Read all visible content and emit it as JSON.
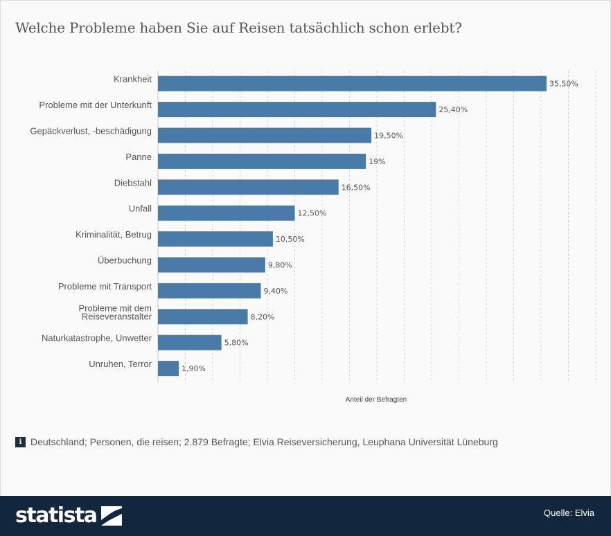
{
  "page": {
    "title": "Welche Probleme haben Sie auf Reisen tatsächlich schon erlebt?",
    "note": "Deutschland; Personen, die reisen; 2.879 Befragte; Elvia Reiseversicherung, Leuphana Universität Lüneburg",
    "info_icon_glyph": "i",
    "brand": "statista",
    "source": "Quelle: Elvia"
  },
  "chart_data": {
    "type": "bar",
    "orientation": "horizontal",
    "xlabel": "Anteil der Befragten",
    "xlim": [
      0,
      40
    ],
    "grid": "vertical-dashed",
    "bar_color": "#4a7aa8",
    "categories": [
      [
        "Krankheit"
      ],
      [
        "Probleme mit der Unterkunft"
      ],
      [
        "Gepäckverlust, -beschädigung"
      ],
      [
        "Panne"
      ],
      [
        "Diebstahl"
      ],
      [
        "Unfall"
      ],
      [
        "Kriminalität, Betrug"
      ],
      [
        "Überbuchung"
      ],
      [
        "Probleme mit Transport"
      ],
      [
        "Probleme mit dem",
        "Reiseveranstalter"
      ],
      [
        "Naturkatastrophe, Unwetter"
      ],
      [
        "Unruhen, Terror"
      ]
    ],
    "values": [
      35.5,
      25.4,
      19.5,
      19,
      16.5,
      12.5,
      10.5,
      9.8,
      9.4,
      8.2,
      5.8,
      1.9
    ],
    "value_labels": [
      "35,50%",
      "25,40%",
      "19,50%",
      "19%",
      "16,50%",
      "12,50%",
      "10,50%",
      "9,80%",
      "9,40%",
      "8,20%",
      "5,80%",
      "1,90%"
    ]
  }
}
